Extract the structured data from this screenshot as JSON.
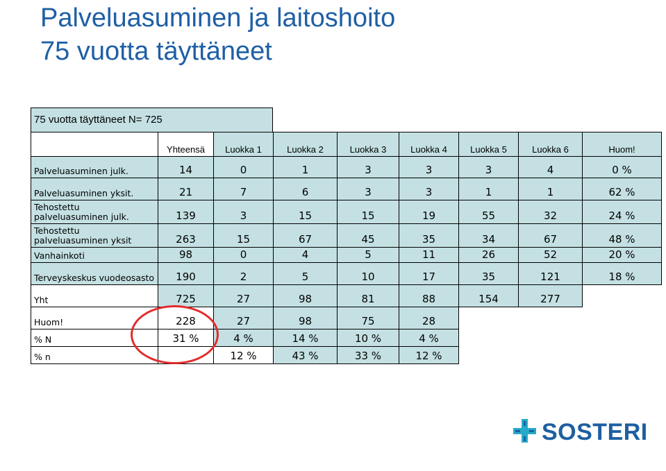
{
  "title": {
    "line1": "Palveluasuminen ja laitoshoito",
    "line2": "75 vuotta täyttäneet"
  },
  "table": {
    "caption": "75 vuotta täyttäneet N= 725",
    "headers": [
      "Yhteensä",
      "Luokka 1",
      "Luokka 2",
      "Luokka 3",
      "Luokka 4",
      "Luokka 5",
      "Luokka 6",
      "Huom!"
    ],
    "rows": [
      {
        "label": "Palveluasuminen julk.",
        "values": [
          "14",
          "0",
          "1",
          "3",
          "3",
          "3",
          "4",
          "0 %"
        ]
      },
      {
        "label": "Palveluasuminen yksit.",
        "values": [
          "21",
          "7",
          "6",
          "3",
          "3",
          "1",
          "1",
          "62 %"
        ]
      },
      {
        "label": "Tehostettu palveluasuminen julk.",
        "values": [
          "139",
          "3",
          "15",
          "15",
          "19",
          "55",
          "32",
          "24 %"
        ]
      },
      {
        "label": "Tehostettu palveluasuminen yksit",
        "values": [
          "263",
          "15",
          "67",
          "45",
          "35",
          "34",
          "67",
          "48 %"
        ]
      },
      {
        "label": "Vanhainkoti",
        "values": [
          "98",
          "0",
          "4",
          "5",
          "11",
          "26",
          "52",
          "20 %"
        ]
      },
      {
        "label": "Terveyskeskus vuodeosasto",
        "values": [
          "190",
          "2",
          "5",
          "10",
          "17",
          "35",
          "121",
          "18 %"
        ]
      },
      {
        "label": "Yht",
        "values": [
          "725",
          "27",
          "98",
          "81",
          "88",
          "154",
          "277"
        ]
      },
      {
        "label": "Huom!",
        "values": [
          "228",
          "27",
          "98",
          "75",
          "28"
        ]
      },
      {
        "label": "% N",
        "values": [
          "31 %",
          "4 %",
          "14 %",
          "10 %",
          "4 %"
        ]
      },
      {
        "label": "% n",
        "values": [
          "",
          "12 %",
          "43 %",
          "33 %",
          "12 %"
        ]
      }
    ]
  },
  "logo": {
    "text": "SOSTERI"
  },
  "colors": {
    "title": "#1f5fa5",
    "cell": "#c4e0e2",
    "circle": "#e32b2b",
    "logo": "#1e5fa0",
    "logo_cross": "#27a9c9"
  }
}
